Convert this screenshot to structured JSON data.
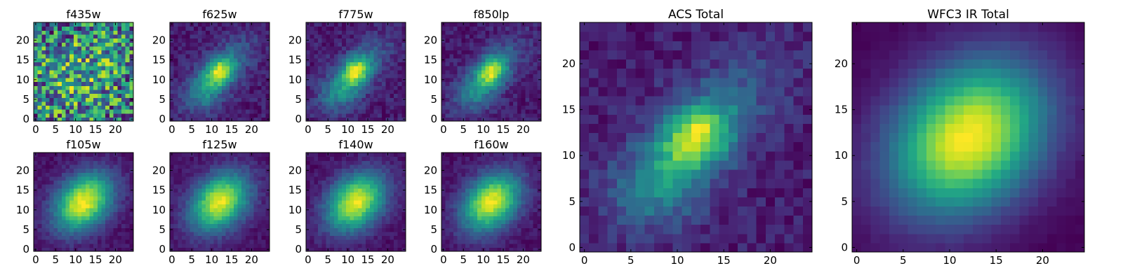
{
  "figure": {
    "background": "#ffffff",
    "colormap": "viridis",
    "grid": false
  },
  "chart_data": [
    {
      "type": "heatmap",
      "title": "f435w",
      "rows": 25,
      "cols": 25,
      "profile": "noisy",
      "xticks": [
        0,
        5,
        10,
        15,
        20
      ],
      "yticks": [
        0,
        5,
        10,
        15,
        20
      ],
      "xlim": [
        -0.5,
        24.5
      ],
      "ylim": [
        -0.5,
        24.5
      ],
      "origin": "lower"
    },
    {
      "type": "heatmap",
      "title": "f625w",
      "rows": 25,
      "cols": 25,
      "profile": "blob",
      "xticks": [
        0,
        5,
        10,
        15,
        20
      ],
      "yticks": [
        0,
        5,
        10,
        15,
        20
      ],
      "xlim": [
        -0.5,
        24.5
      ],
      "ylim": [
        -0.5,
        24.5
      ],
      "origin": "lower"
    },
    {
      "type": "heatmap",
      "title": "f775w",
      "rows": 25,
      "cols": 25,
      "profile": "blob",
      "xticks": [
        0,
        5,
        10,
        15,
        20
      ],
      "yticks": [
        0,
        5,
        10,
        15,
        20
      ],
      "xlim": [
        -0.5,
        24.5
      ],
      "ylim": [
        -0.5,
        24.5
      ],
      "origin": "lower"
    },
    {
      "type": "heatmap",
      "title": "f850lp",
      "rows": 25,
      "cols": 25,
      "profile": "blob",
      "xticks": [
        0,
        5,
        10,
        15,
        20
      ],
      "yticks": [
        0,
        5,
        10,
        15,
        20
      ],
      "xlim": [
        -0.5,
        24.5
      ],
      "ylim": [
        -0.5,
        24.5
      ],
      "origin": "lower"
    },
    {
      "type": "heatmap",
      "title": "ACS Total",
      "rows": 25,
      "cols": 25,
      "profile": "blob",
      "xticks": [
        0,
        5,
        10,
        15,
        20
      ],
      "yticks": [
        0,
        5,
        10,
        15,
        20
      ],
      "xlim": [
        -0.5,
        24.5
      ],
      "ylim": [
        -0.5,
        24.5
      ],
      "origin": "lower"
    },
    {
      "type": "heatmap",
      "title": "WFC3 IR Total",
      "rows": 25,
      "cols": 25,
      "profile": "smooth",
      "xticks": [
        0,
        5,
        10,
        15,
        20
      ],
      "yticks": [
        0,
        5,
        10,
        15,
        20
      ],
      "xlim": [
        -0.5,
        24.5
      ],
      "ylim": [
        -0.5,
        24.5
      ],
      "origin": "lower"
    },
    {
      "type": "heatmap",
      "title": "f105w",
      "rows": 25,
      "cols": 25,
      "profile": "ir",
      "xticks": [
        0,
        5,
        10,
        15,
        20
      ],
      "yticks": [
        0,
        5,
        10,
        15,
        20
      ],
      "xlim": [
        -0.5,
        24.5
      ],
      "ylim": [
        -0.5,
        24.5
      ],
      "origin": "lower"
    },
    {
      "type": "heatmap",
      "title": "f125w",
      "rows": 25,
      "cols": 25,
      "profile": "ir",
      "xticks": [
        0,
        5,
        10,
        15,
        20
      ],
      "yticks": [
        0,
        5,
        10,
        15,
        20
      ],
      "xlim": [
        -0.5,
        24.5
      ],
      "ylim": [
        -0.5,
        24.5
      ],
      "origin": "lower"
    },
    {
      "type": "heatmap",
      "title": "f140w",
      "rows": 25,
      "cols": 25,
      "profile": "ir",
      "xticks": [
        0,
        5,
        10,
        15,
        20
      ],
      "yticks": [
        0,
        5,
        10,
        15,
        20
      ],
      "xlim": [
        -0.5,
        24.5
      ],
      "ylim": [
        -0.5,
        24.5
      ],
      "origin": "lower"
    },
    {
      "type": "heatmap",
      "title": "f160w",
      "rows": 25,
      "cols": 25,
      "profile": "ir",
      "xticks": [
        0,
        5,
        10,
        15,
        20
      ],
      "yticks": [
        0,
        5,
        10,
        15,
        20
      ],
      "xlim": [
        -0.5,
        24.5
      ],
      "ylim": [
        -0.5,
        24.5
      ],
      "origin": "lower"
    }
  ]
}
